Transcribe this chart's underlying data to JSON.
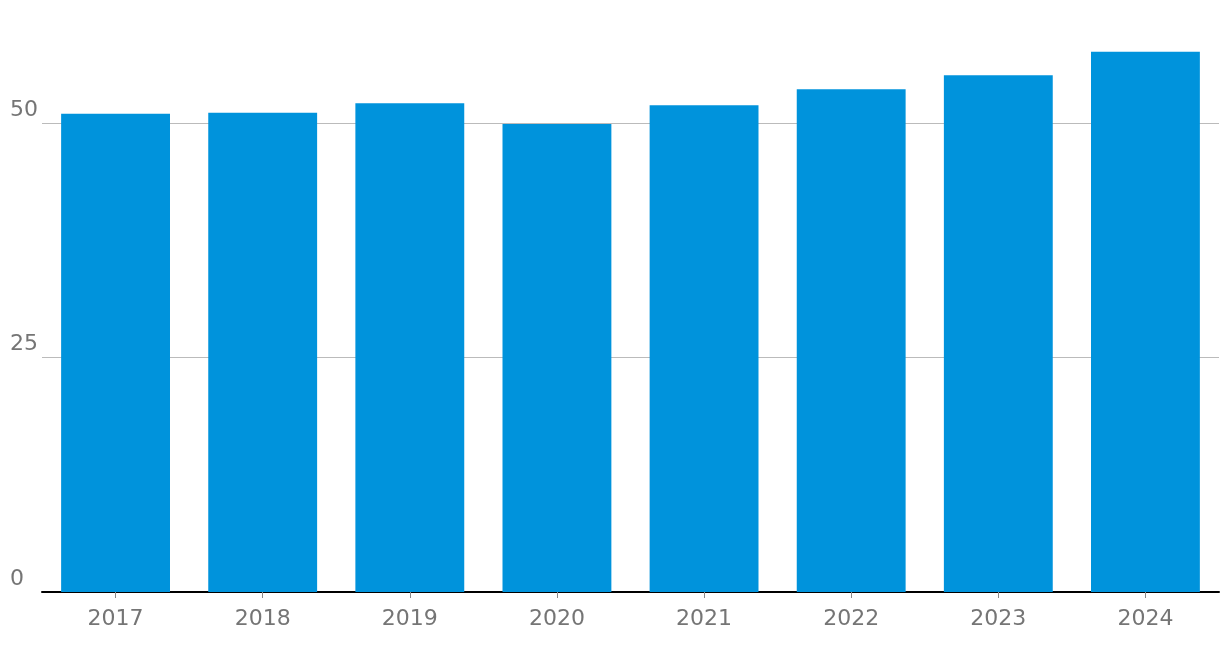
{
  "chart_data": {
    "type": "bar",
    "categories": [
      "2017",
      "2018",
      "2019",
      "2020",
      "2021",
      "2022",
      "2023",
      "2024"
    ],
    "values": [
      51.0,
      51.1,
      52.1,
      49.9,
      51.9,
      53.6,
      55.1,
      57.6
    ],
    "color": "#0093dc",
    "ylim": [
      0,
      58
    ],
    "yticks": [
      0,
      25,
      50
    ],
    "grid": "y"
  }
}
